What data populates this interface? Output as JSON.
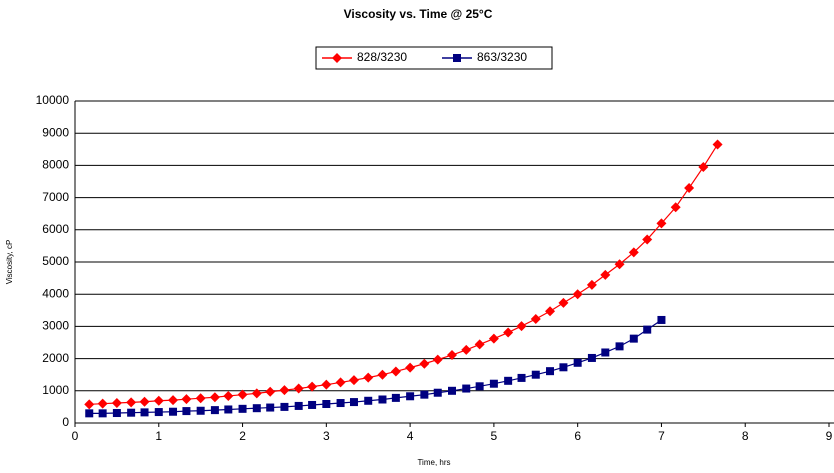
{
  "chart_data": {
    "type": "line",
    "title": "Viscosity vs. Time @ 25°C",
    "x_label": "Time, hrs",
    "y_label": "Viscosity, cP",
    "xlim": [
      0,
      9
    ],
    "xticks": [
      0,
      1,
      2,
      3,
      4,
      5,
      6,
      7,
      8,
      9
    ],
    "ylim": [
      0,
      10000
    ],
    "yticks": [
      0,
      1000,
      2000,
      3000,
      4000,
      5000,
      6000,
      7000,
      8000,
      9000,
      10000
    ],
    "grid": true,
    "legend": "top",
    "series": [
      {
        "name": "828/3230",
        "color": "#ff0000",
        "marker": "diamond",
        "x": [
          0.17,
          0.33,
          0.5,
          0.67,
          0.83,
          1.0,
          1.17,
          1.33,
          1.5,
          1.67,
          1.83,
          2.0,
          2.17,
          2.33,
          2.5,
          2.67,
          2.83,
          3.0,
          3.17,
          3.33,
          3.5,
          3.67,
          3.83,
          4.0,
          4.17,
          4.33,
          4.5,
          4.67,
          4.83,
          5.0,
          5.17,
          5.33,
          5.5,
          5.67,
          5.83,
          6.0,
          6.17,
          6.33,
          6.5,
          6.67,
          6.83,
          7.0,
          7.17,
          7.33,
          7.5,
          7.67
        ],
        "values": [
          580,
          600,
          620,
          640,
          660,
          690,
          710,
          740,
          770,
          800,
          840,
          880,
          920,
          970,
          1020,
          1070,
          1130,
          1190,
          1260,
          1330,
          1410,
          1500,
          1600,
          1720,
          1840,
          1970,
          2110,
          2270,
          2440,
          2620,
          2810,
          3010,
          3230,
          3470,
          3730,
          4000,
          4290,
          4600,
          4930,
          5300,
          5700,
          6200,
          6700,
          7300,
          7950,
          8650
        ]
      },
      {
        "name": "863/3230",
        "color": "#000080",
        "marker": "square",
        "x": [
          0.17,
          0.33,
          0.5,
          0.67,
          0.83,
          1.0,
          1.17,
          1.33,
          1.5,
          1.67,
          1.83,
          2.0,
          2.17,
          2.33,
          2.5,
          2.67,
          2.83,
          3.0,
          3.17,
          3.33,
          3.5,
          3.67,
          3.83,
          4.0,
          4.17,
          4.33,
          4.5,
          4.67,
          4.83,
          5.0,
          5.17,
          5.33,
          5.5,
          5.67,
          5.83,
          6.0,
          6.17,
          6.33,
          6.5,
          6.67,
          6.83,
          7.0
        ],
        "values": [
          300,
          300,
          310,
          320,
          330,
          340,
          350,
          370,
          380,
          400,
          420,
          440,
          460,
          480,
          500,
          530,
          560,
          590,
          620,
          650,
          690,
          730,
          780,
          830,
          880,
          940,
          1000,
          1070,
          1140,
          1220,
          1310,
          1400,
          1500,
          1610,
          1730,
          1870,
          2020,
          2190,
          2380,
          2620,
          2900,
          3200
        ]
      }
    ]
  }
}
